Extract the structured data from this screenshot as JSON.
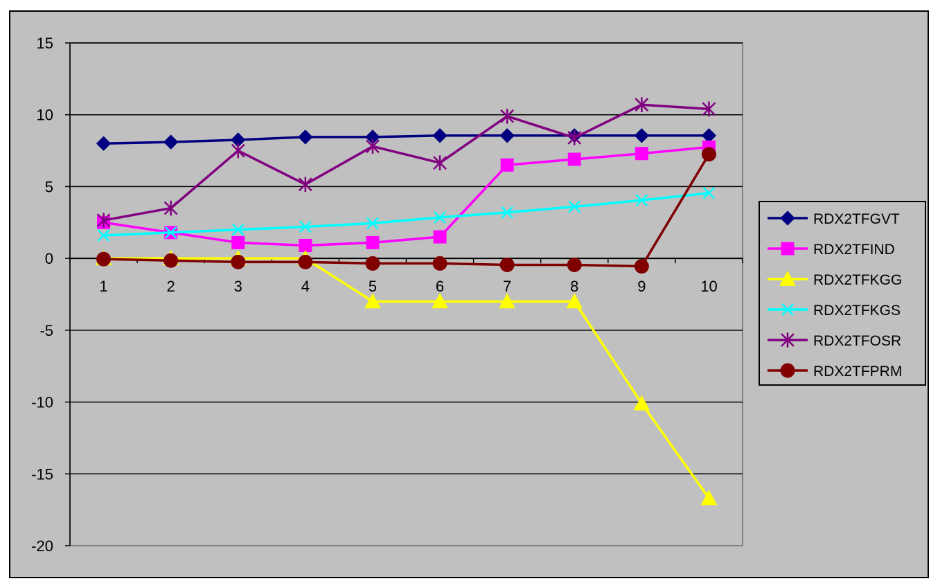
{
  "chart_data": {
    "type": "line",
    "title": "",
    "xlabel": "",
    "ylabel": "",
    "categories": [
      "1",
      "2",
      "3",
      "4",
      "5",
      "6",
      "7",
      "8",
      "9",
      "10"
    ],
    "ylim": [
      -20,
      15
    ],
    "yticks": [
      15,
      10,
      5,
      0,
      -5,
      -10,
      -15,
      -20
    ],
    "grid": true,
    "legend_position": "right",
    "colors": {
      "background": "#c0c0c0",
      "plot_background": "#c0c0c0",
      "gridline": "#000000",
      "axis": "#000000"
    },
    "series": [
      {
        "name": "RDX2TFGVT",
        "color": "#000080",
        "marker": "diamond",
        "values": [
          8.0,
          8.1,
          8.25,
          8.45,
          8.45,
          8.55,
          8.55,
          8.55,
          8.55,
          8.55
        ]
      },
      {
        "name": "RDX2TFIND",
        "color": "#ff00ff",
        "marker": "square",
        "values": [
          2.5,
          1.8,
          1.1,
          0.9,
          1.1,
          1.5,
          6.5,
          6.9,
          7.3,
          7.75
        ]
      },
      {
        "name": "RDX2TFKGG",
        "color": "#ffff00",
        "marker": "triangle",
        "values": [
          0.0,
          0.0,
          0.0,
          0.0,
          -3.0,
          -3.0,
          -3.0,
          -3.0,
          -10.1,
          -16.7
        ]
      },
      {
        "name": "RDX2TFKGS",
        "color": "#00ffff",
        "marker": "x",
        "values": [
          1.6,
          1.8,
          2.0,
          2.2,
          2.45,
          2.85,
          3.2,
          3.6,
          4.05,
          4.55
        ]
      },
      {
        "name": "RDX2TFOSR",
        "color": "#800080",
        "marker": "star",
        "values": [
          2.65,
          3.5,
          7.5,
          5.15,
          7.8,
          6.65,
          9.9,
          8.4,
          10.7,
          10.4
        ]
      },
      {
        "name": "RDX2TFPRM",
        "color": "#800000",
        "marker": "circle",
        "values": [
          -0.05,
          -0.15,
          -0.25,
          -0.25,
          -0.35,
          -0.35,
          -0.45,
          -0.45,
          -0.55,
          7.25
        ]
      }
    ]
  }
}
